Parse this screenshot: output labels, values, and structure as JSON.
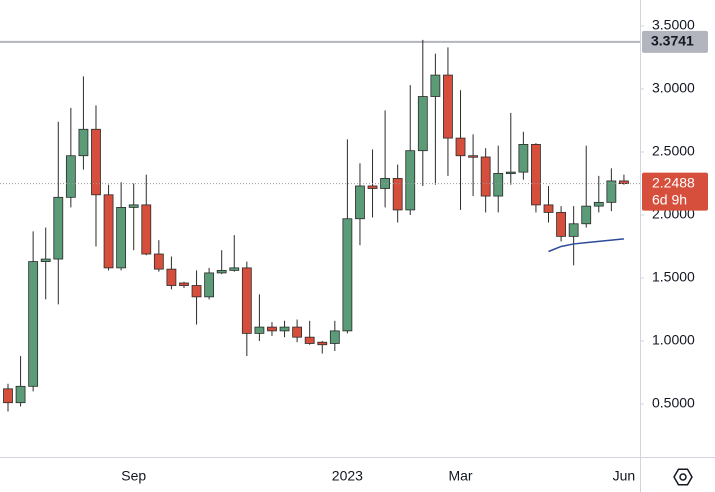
{
  "chart_data": {
    "type": "candlestick",
    "categories": [
      null,
      null,
      null,
      null,
      null,
      null,
      null,
      null,
      null,
      null,
      "Sep",
      null,
      null,
      null,
      null,
      null,
      null,
      null,
      null,
      null,
      null,
      null,
      null,
      null,
      null,
      null,
      null,
      "2023",
      null,
      null,
      null,
      null,
      null,
      null,
      null,
      null,
      "Mar",
      null,
      null,
      null,
      null,
      null,
      null,
      null,
      null,
      null,
      null,
      null,
      null,
      "Jun"
    ],
    "open": [
      0.62,
      0.51,
      0.64,
      1.63,
      1.65,
      2.14,
      2.47,
      2.68,
      2.16,
      1.58,
      2.06,
      2.08,
      1.69,
      1.57,
      1.46,
      1.44,
      1.35,
      1.54,
      1.56,
      1.58,
      1.06,
      1.11,
      1.08,
      1.11,
      1.03,
      0.99,
      0.98,
      1.08,
      1.97,
      2.23,
      2.21,
      2.29,
      2.04,
      2.51,
      2.94,
      3.11,
      2.61,
      2.47,
      2.46,
      2.15,
      2.33,
      2.34,
      2.56,
      2.08,
      2.02,
      1.83,
      1.93,
      2.07,
      2.1,
      2.27
    ],
    "high": [
      0.66,
      0.88,
      1.87,
      1.9,
      2.74,
      2.85,
      3.1,
      2.87,
      2.24,
      2.26,
      2.25,
      2.32,
      1.8,
      1.67,
      1.47,
      1.56,
      1.58,
      1.72,
      1.84,
      1.63,
      1.37,
      1.15,
      1.16,
      1.17,
      1.16,
      1.0,
      1.16,
      2.6,
      2.41,
      2.52,
      2.83,
      2.4,
      3.03,
      3.39,
      3.28,
      3.33,
      2.99,
      2.64,
      2.53,
      2.55,
      2.81,
      2.66,
      2.57,
      2.23,
      2.07,
      2.07,
      2.55,
      2.31,
      2.37,
      2.32
    ],
    "low": [
      0.44,
      0.48,
      0.6,
      1.33,
      1.29,
      2.06,
      2.36,
      1.75,
      1.56,
      1.56,
      1.72,
      1.68,
      1.55,
      1.41,
      1.42,
      1.13,
      1.33,
      1.53,
      1.55,
      0.88,
      1.0,
      1.04,
      1.03,
      0.99,
      0.97,
      0.9,
      0.92,
      1.06,
      1.76,
      1.98,
      2.06,
      1.94,
      2.0,
      2.23,
      2.24,
      2.31,
      2.04,
      2.15,
      2.02,
      2.02,
      2.24,
      2.28,
      2.02,
      1.94,
      1.79,
      1.6,
      1.9,
      2.02,
      2.03,
      2.24
    ],
    "close": [
      0.51,
      0.64,
      1.63,
      1.65,
      2.14,
      2.47,
      2.68,
      2.16,
      1.58,
      2.06,
      2.08,
      1.69,
      1.57,
      1.44,
      1.44,
      1.35,
      1.54,
      1.56,
      1.58,
      1.06,
      1.11,
      1.08,
      1.11,
      1.03,
      0.98,
      0.97,
      1.08,
      1.97,
      2.23,
      2.21,
      2.29,
      2.04,
      2.51,
      2.94,
      3.11,
      2.61,
      2.47,
      2.46,
      2.15,
      2.33,
      2.34,
      2.56,
      2.08,
      2.02,
      1.83,
      1.93,
      2.07,
      2.1,
      2.27,
      2.2488
    ],
    "up_color": "#5b9b77",
    "down_color": "#d64f3d",
    "line": {
      "color": "#2e4b9a",
      "values": [
        null,
        null,
        null,
        null,
        null,
        null,
        null,
        null,
        null,
        null,
        null,
        null,
        null,
        null,
        null,
        null,
        null,
        null,
        null,
        null,
        null,
        null,
        null,
        null,
        null,
        null,
        null,
        null,
        null,
        null,
        null,
        null,
        null,
        null,
        null,
        null,
        null,
        null,
        null,
        null,
        null,
        null,
        null,
        1.71,
        1.75,
        1.77,
        1.78,
        1.79,
        1.8,
        1.81
      ]
    },
    "hline": {
      "value": 3.3741,
      "color": "#b2b5be"
    },
    "countdown": "6d 9h",
    "ylim": [
      0.079,
      3.706
    ],
    "yticks": [
      {
        "value": 0.5,
        "label": "0.5000"
      },
      {
        "value": 1,
        "label": "1.0000"
      },
      {
        "value": 1.5,
        "label": "1.5000"
      },
      {
        "value": 2,
        "label": "2.0000"
      },
      {
        "value": 2.5,
        "label": "2.5000"
      },
      {
        "value": 3,
        "label": "3.0000"
      },
      {
        "value": 3.5,
        "label": "3.5000"
      }
    ]
  }
}
